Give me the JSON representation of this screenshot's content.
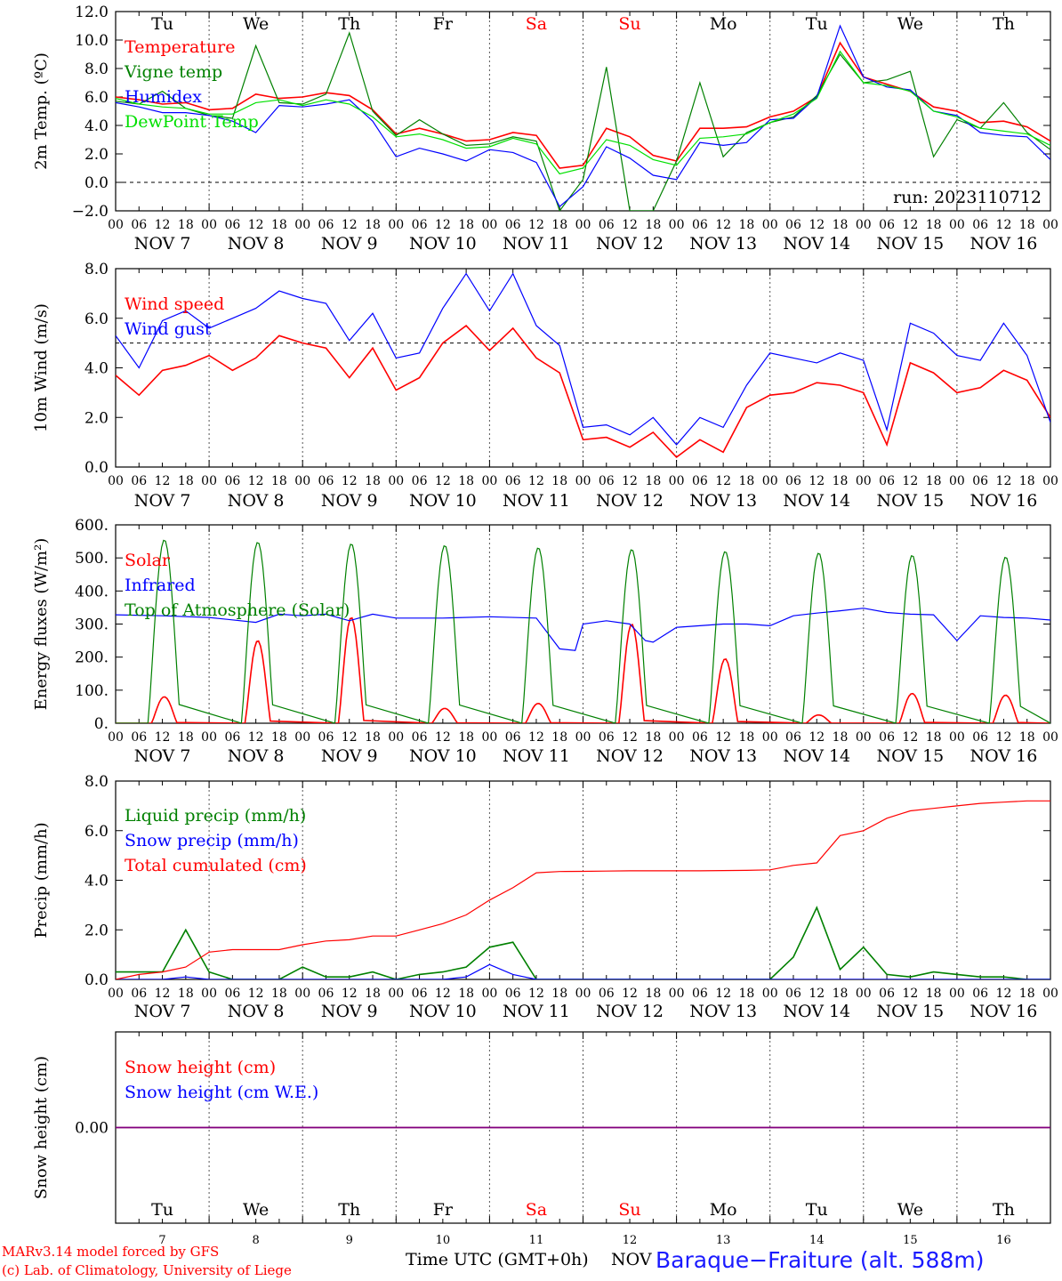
{
  "run_label": "run: 2023110712",
  "days": [
    "Tu",
    "We",
    "Th",
    "Fr",
    "Sa",
    "Su",
    "Mo",
    "Tu",
    "We",
    "Th"
  ],
  "weekend_color": "#ff0000",
  "day_dates": [
    "NOV  7",
    "NOV  8",
    "NOV  9",
    "NOV 10",
    "NOV 11",
    "NOV 12",
    "NOV 13",
    "NOV 14",
    "NOV 15",
    "NOV 16"
  ],
  "bottom_days": [
    "7",
    "8",
    "9",
    "10",
    "11",
    "12",
    "13",
    "14",
    "15",
    "16"
  ],
  "hour_ticks": [
    "00",
    "06",
    "12",
    "18"
  ],
  "footer": {
    "model": "MARv3.14 model forced by GFS",
    "copyright": "(c) Lab. of Climatology, University of Liege",
    "xlabel": "Time UTC (GMT+0h)",
    "month": "NOV",
    "station": "Baraque−Fraiture (alt. 588m)"
  },
  "colors": {
    "red": "#ff0000",
    "green": "#008000",
    "blue": "#0000ff",
    "lightgreen": "#00e000",
    "purple": "#800080"
  },
  "chart_data": [
    {
      "type": "line",
      "ylabel": "2m Temp. (ºC)",
      "ylim": [
        -2,
        12
      ],
      "yticks": [
        "12.0",
        "10.0",
        "8.0",
        "6.0",
        "4.0",
        "2.0",
        "0.0",
        "−2.0"
      ],
      "yticks_values": [
        12,
        10,
        8,
        6,
        4,
        2,
        0,
        -2
      ],
      "ref_line": 0,
      "x": [
        0,
        6,
        12,
        18,
        24,
        30,
        36,
        42,
        48,
        54,
        60,
        66,
        72,
        78,
        84,
        90,
        96,
        102,
        108,
        114,
        120,
        126,
        132,
        138,
        144,
        150,
        156,
        162,
        168,
        174,
        180,
        186,
        192,
        198,
        204,
        210,
        216,
        222,
        228,
        234,
        240
      ],
      "series": [
        {
          "name": "Temperature",
          "color": "#ff0000",
          "values": [
            6.0,
            5.8,
            5.5,
            5.6,
            5.1,
            5.2,
            6.2,
            5.9,
            6.0,
            6.3,
            6.1,
            5.1,
            3.4,
            3.8,
            3.4,
            2.9,
            3.0,
            3.5,
            3.3,
            1.0,
            1.2,
            3.8,
            3.2,
            1.9,
            1.5,
            3.8,
            3.8,
            3.9,
            4.6,
            5.0,
            6.0,
            9.8,
            7.4,
            6.9,
            6.4,
            5.3,
            5.0,
            4.2,
            4.3,
            3.9,
            2.9
          ]
        },
        {
          "name": "Vigne temp",
          "color": "#008000",
          "values": [
            5.7,
            5.5,
            6.4,
            5.2,
            4.7,
            4.5,
            9.6,
            5.6,
            5.5,
            6.2,
            10.5,
            5.0,
            3.3,
            4.4,
            3.4,
            2.6,
            2.7,
            3.2,
            2.9,
            -2.0,
            0.2,
            8.1,
            -2.0,
            -2.0,
            1.5,
            7.0,
            1.8,
            3.5,
            4.2,
            4.6,
            6.1,
            9.0,
            7.0,
            7.2,
            7.8,
            1.8,
            4.4,
            3.8,
            5.6,
            3.5,
            2.3
          ]
        },
        {
          "name": "Humidex",
          "color": "#0000ff",
          "values": [
            5.6,
            5.3,
            4.9,
            4.9,
            4.7,
            4.3,
            3.5,
            5.4,
            5.3,
            5.5,
            5.8,
            4.3,
            1.8,
            2.4,
            2.0,
            1.5,
            2.3,
            2.1,
            1.4,
            -1.7,
            -0.3,
            2.5,
            1.7,
            0.5,
            0.2,
            2.8,
            2.6,
            2.8,
            4.4,
            4.5,
            6.0,
            11.0,
            7.4,
            6.7,
            6.5,
            5.0,
            4.7,
            3.5,
            3.3,
            3.2,
            1.6
          ]
        },
        {
          "name": "DewPoint Temp",
          "color": "#00e000",
          "values": [
            5.9,
            5.5,
            5.3,
            5.2,
            4.8,
            4.8,
            5.6,
            5.8,
            5.4,
            5.8,
            5.5,
            4.6,
            3.2,
            3.4,
            3.0,
            2.4,
            2.5,
            3.1,
            2.7,
            0.6,
            1.0,
            3.0,
            2.6,
            1.6,
            1.2,
            3.1,
            3.2,
            3.4,
            4.2,
            4.8,
            5.9,
            9.2,
            7.0,
            6.8,
            6.4,
            5.0,
            4.6,
            3.8,
            3.6,
            3.4,
            2.6
          ]
        }
      ]
    },
    {
      "type": "line",
      "ylabel": "10m Wind (m/s)",
      "ylim": [
        0,
        8
      ],
      "yticks": [
        "8.0",
        "6.0",
        "4.0",
        "2.0",
        "0.0"
      ],
      "yticks_values": [
        8,
        6,
        4,
        2,
        0
      ],
      "ref_line": 5,
      "x": [
        0,
        6,
        12,
        18,
        24,
        30,
        36,
        42,
        48,
        54,
        60,
        66,
        72,
        78,
        84,
        90,
        96,
        102,
        108,
        114,
        120,
        126,
        132,
        138,
        144,
        150,
        156,
        162,
        168,
        174,
        180,
        186,
        192,
        198,
        204,
        210,
        216,
        222,
        228,
        234,
        240
      ],
      "series": [
        {
          "name": "Wind speed",
          "color": "#ff0000",
          "values": [
            3.7,
            2.9,
            3.9,
            4.1,
            4.5,
            3.9,
            4.4,
            5.3,
            5.0,
            4.8,
            3.6,
            4.8,
            3.1,
            3.6,
            5.0,
            5.7,
            4.7,
            5.6,
            4.4,
            3.8,
            1.1,
            1.2,
            0.8,
            1.4,
            0.4,
            1.1,
            0.6,
            2.4,
            2.9,
            3.0,
            3.4,
            3.3,
            3.0,
            0.9,
            4.2,
            3.8,
            3.0,
            3.2,
            3.9,
            3.5,
            2.0
          ]
        },
        {
          "name": "Wind gust",
          "color": "#0000ff",
          "values": [
            5.3,
            4.0,
            5.9,
            6.3,
            5.6,
            6.0,
            6.4,
            7.1,
            6.8,
            6.6,
            5.1,
            6.2,
            4.4,
            4.6,
            6.4,
            7.8,
            6.3,
            7.8,
            5.7,
            4.9,
            1.6,
            1.7,
            1.3,
            2.0,
            0.9,
            2.0,
            1.6,
            3.3,
            4.6,
            4.4,
            4.2,
            4.6,
            4.3,
            1.5,
            5.8,
            5.4,
            4.5,
            4.3,
            5.8,
            4.5,
            1.8
          ]
        }
      ]
    },
    {
      "type": "line",
      "ylabel": "Energy fluxes (W/m²)",
      "ylim": [
        0,
        600
      ],
      "yticks": [
        "600.",
        "500.",
        "400.",
        "300.",
        "200.",
        "100.",
        "0."
      ],
      "yticks_values": [
        600,
        500,
        400,
        300,
        200,
        100,
        0
      ],
      "days_count": 10,
      "series": [
        {
          "name": "Solar",
          "color": "#ff0000",
          "daily_peaks": [
            80,
            250,
            320,
            45,
            60,
            300,
            195,
            25,
            90,
            85
          ]
        },
        {
          "name": "Infrared",
          "color": "#0000ff",
          "x": [
            0,
            12,
            24,
            36,
            42,
            48,
            54,
            60,
            66,
            72,
            84,
            96,
            108,
            114,
            118,
            120,
            126,
            132,
            136,
            138,
            144,
            150,
            156,
            162,
            168,
            174,
            180,
            186,
            192,
            198,
            204,
            210,
            216,
            222,
            228,
            234,
            240
          ],
          "values": [
            328,
            325,
            320,
            305,
            330,
            325,
            330,
            310,
            330,
            318,
            318,
            322,
            318,
            225,
            220,
            300,
            310,
            300,
            250,
            245,
            290,
            295,
            300,
            300,
            295,
            325,
            333,
            340,
            348,
            335,
            330,
            328,
            250,
            325,
            320,
            318,
            312
          ]
        },
        {
          "name": "Top of Atmosphere (Solar)",
          "color": "#008000",
          "daily_peaks": [
            555,
            548,
            543,
            538,
            531,
            526,
            520,
            515,
            508,
            503
          ]
        }
      ]
    },
    {
      "type": "line",
      "ylabel": "Precip (mm/h)",
      "ylim": [
        0,
        8
      ],
      "yticks": [
        "8.0",
        "6.0",
        "4.0",
        "2.0",
        "0.0"
      ],
      "yticks_values": [
        8,
        6,
        4,
        2,
        0
      ],
      "x": [
        0,
        6,
        12,
        18,
        24,
        30,
        36,
        42,
        48,
        54,
        60,
        66,
        72,
        78,
        84,
        90,
        96,
        102,
        108,
        114,
        120,
        126,
        132,
        138,
        144,
        150,
        156,
        162,
        168,
        174,
        180,
        186,
        192,
        198,
        204,
        210,
        216,
        222,
        228,
        234,
        240
      ],
      "series": [
        {
          "name": "Liquid precip (mm/h)",
          "color": "#008000",
          "values": [
            0.3,
            0.3,
            0.3,
            2.0,
            0.3,
            0.0,
            0.0,
            0.0,
            0.5,
            0.1,
            0.1,
            0.3,
            0.0,
            0.2,
            0.3,
            0.5,
            1.3,
            1.5,
            0.0,
            0.0,
            0.0,
            0.0,
            0.0,
            0.0,
            0.0,
            0.0,
            0.0,
            0.0,
            0.0,
            0.9,
            2.9,
            0.4,
            1.3,
            0.2,
            0.1,
            0.3,
            0.2,
            0.1,
            0.1,
            0.0,
            0.0
          ]
        },
        {
          "name": "Snow precip (mm/h)",
          "color": "#0000ff",
          "values": [
            0.0,
            0.0,
            0.0,
            0.1,
            0.0,
            0.0,
            0.0,
            0.0,
            0.0,
            0.0,
            0.0,
            0.0,
            0.0,
            0.0,
            0.0,
            0.1,
            0.6,
            0.2,
            0.0,
            0.0,
            0.0,
            0.0,
            0.0,
            0.0,
            0.0,
            0.0,
            0.0,
            0.0,
            0.0,
            0.0,
            0.0,
            0.0,
            0.0,
            0.0,
            0.0,
            0.0,
            0.0,
            0.0,
            0.0,
            0.0,
            0.0
          ]
        },
        {
          "name": "Total cumulated (cm)",
          "color": "#ff0000",
          "values": [
            0.0,
            0.2,
            0.3,
            0.5,
            1.1,
            1.2,
            1.2,
            1.2,
            1.4,
            1.55,
            1.6,
            1.75,
            1.75,
            2.0,
            2.25,
            2.6,
            3.2,
            3.7,
            4.3,
            4.35,
            4.36,
            4.37,
            4.38,
            4.38,
            4.38,
            4.38,
            4.39,
            4.4,
            4.42,
            4.6,
            4.7,
            5.8,
            6.0,
            6.5,
            6.8,
            6.9,
            7.0,
            7.1,
            7.15,
            7.2,
            7.2
          ]
        }
      ]
    },
    {
      "type": "line",
      "ylabel": "Snow height (cm)",
      "ylim": [
        -1,
        1
      ],
      "yticks": [
        "0.00"
      ],
      "yticks_values": [
        0
      ],
      "series": [
        {
          "name": "Snow height (cm)",
          "color": "#ff0000",
          "values": [
            0.0,
            0.0
          ]
        },
        {
          "name": "Snow height (cm W.E.)",
          "color": "#0000ff",
          "values": [
            0.0,
            0.0
          ]
        }
      ]
    }
  ]
}
